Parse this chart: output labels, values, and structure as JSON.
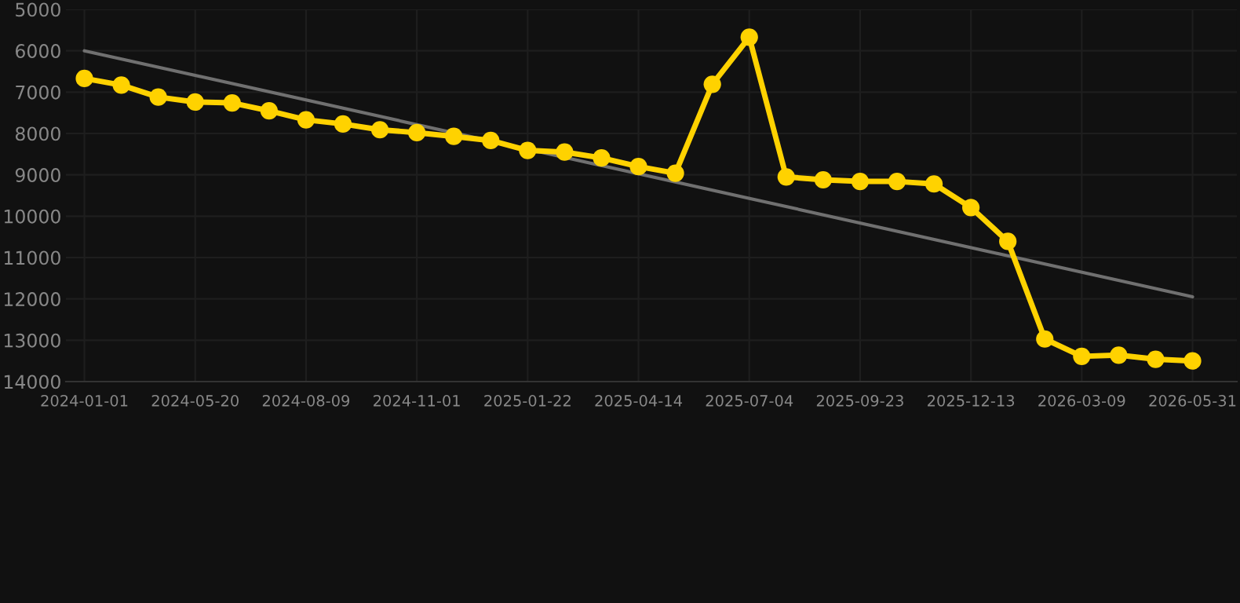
{
  "chart_data": {
    "type": "line",
    "categories": [
      "2024-01-01",
      null,
      null,
      "2024-05-20",
      null,
      null,
      "2024-08-09",
      null,
      null,
      "2024-11-01",
      null,
      null,
      "2025-01-22",
      null,
      null,
      "2025-04-14",
      null,
      null,
      "2025-07-04",
      null,
      null,
      "2025-09-23",
      null,
      null,
      "2025-12-13",
      null,
      null,
      "2026-03-09",
      null,
      null,
      "2026-05-31"
    ],
    "series": [
      {
        "color": "#ffd200",
        "marker": "circle",
        "values": [
          6670,
          6830,
          7120,
          7240,
          7260,
          7450,
          7670,
          7770,
          7910,
          7980,
          8070,
          8170,
          8410,
          8450,
          8590,
          8800,
          8960,
          6810,
          5670,
          9050,
          9120,
          9160,
          9160,
          9220,
          9790,
          10610,
          12970,
          13390,
          13360,
          13460,
          13500
        ]
      },
      {
        "color": "#707070",
        "marker": "none",
        "values": [
          6000,
          null,
          null,
          null,
          null,
          null,
          null,
          null,
          null,
          null,
          null,
          null,
          null,
          null,
          null,
          null,
          null,
          null,
          null,
          null,
          null,
          null,
          null,
          null,
          null,
          null,
          null,
          null,
          null,
          null,
          11950
        ]
      }
    ],
    "ylim": [
      14000,
      5000
    ],
    "yticks": [
      5000,
      6000,
      7000,
      8000,
      9000,
      10000,
      11000,
      12000,
      13000,
      14000
    ],
    "grid": true
  }
}
